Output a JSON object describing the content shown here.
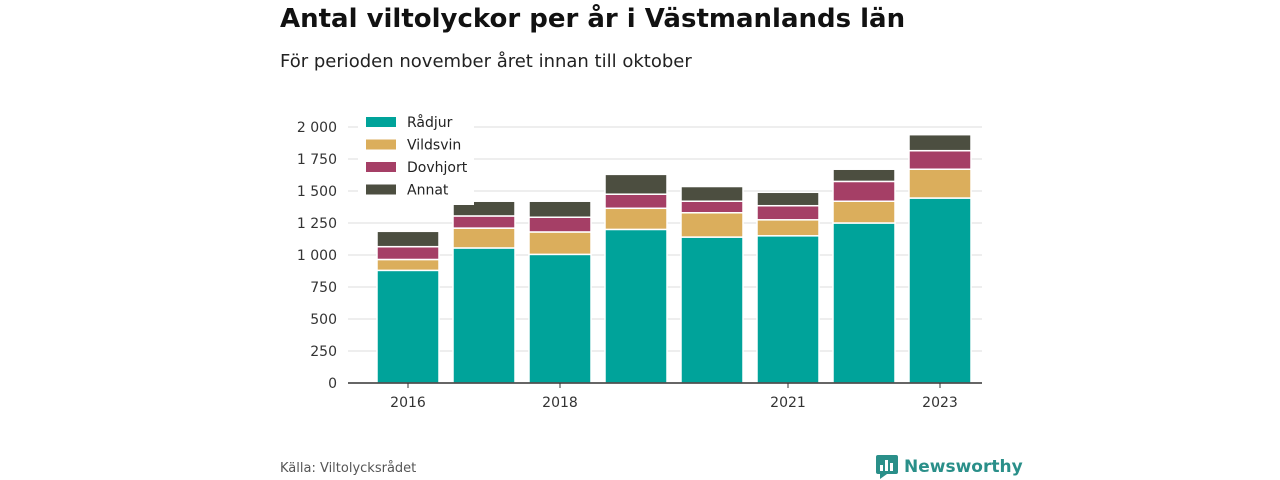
{
  "title": "Antal viltolyckor per år i Västmanlands län",
  "subtitle": "För perioden november året innan till oktober",
  "source": "Källa: Viltolycksrådet",
  "brand": {
    "name": "Newsworthy",
    "icon": "newsworthy-logo-icon",
    "color": "#2a8f89"
  },
  "chart_data": {
    "type": "bar",
    "stacked": true,
    "categories": [
      "2016",
      "2017",
      "2018",
      "2019",
      "2020",
      "2021",
      "2022",
      "2023"
    ],
    "x_tick_labels": [
      "2016",
      "",
      "2018",
      "",
      "",
      "2021",
      "",
      "2023"
    ],
    "y_ticks": [
      "0",
      "250",
      "500",
      "750",
      "1 000",
      "1 250",
      "1 500",
      "1 750",
      "2 000"
    ],
    "ylim": [
      0,
      2000
    ],
    "grid": true,
    "legend": "top-left",
    "series": [
      {
        "name": "Rådjur",
        "color": "#00a39a",
        "values": [
          880,
          1055,
          1005,
          1200,
          1140,
          1150,
          1250,
          1445
        ]
      },
      {
        "name": "Vildsvin",
        "color": "#dbae5c",
        "values": [
          85,
          155,
          175,
          165,
          190,
          125,
          170,
          225
        ]
      },
      {
        "name": "Dovhjort",
        "color": "#a53f66",
        "values": [
          100,
          95,
          115,
          110,
          90,
          110,
          155,
          145
        ]
      },
      {
        "name": "Annat",
        "color": "#4c4e40",
        "values": [
          120,
          115,
          125,
          155,
          115,
          105,
          95,
          125
        ]
      }
    ]
  }
}
